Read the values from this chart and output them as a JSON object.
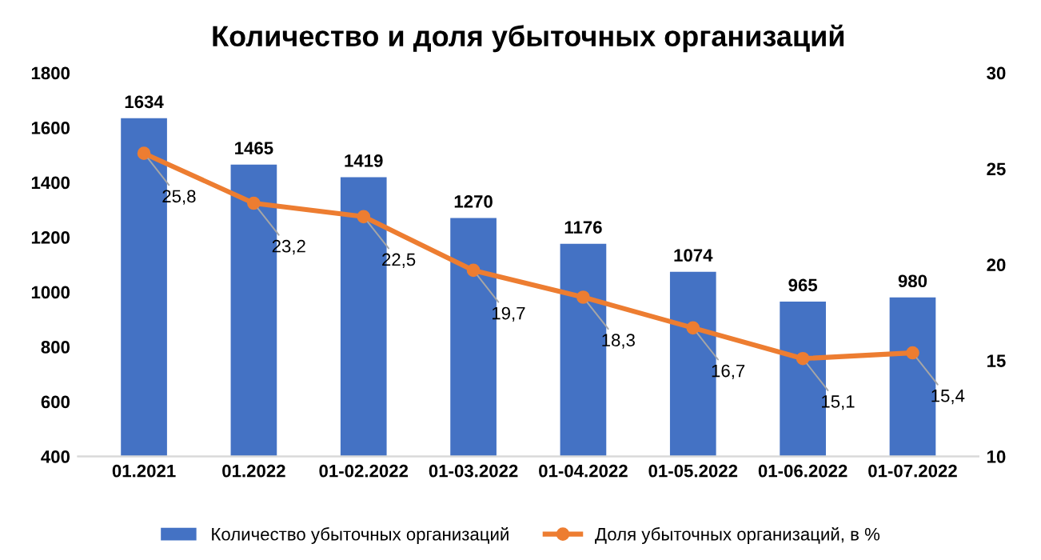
{
  "chart_data": {
    "type": "bar",
    "title": "Количество и доля убыточных организаций",
    "categories": [
      "01.2021",
      "01.2022",
      "01-02.2022",
      "01-03.2022",
      "01-04.2022",
      "01-05.2022",
      "01-06.2022",
      "01-07.2022"
    ],
    "series": [
      {
        "name": "Количество убыточных организаций",
        "color": "#4472c4",
        "values": [
          1634,
          1465,
          1419,
          1270,
          1176,
          1074,
          965,
          980
        ]
      },
      {
        "name": "Доля убыточных организаций, в %",
        "type": "line",
        "axis": "y2",
        "color": "#ed7d31",
        "values": [
          25.8,
          23.2,
          22.5,
          19.7,
          18.3,
          16.7,
          15.1,
          15.4
        ],
        "value_labels": [
          "25,8",
          "23,2",
          "22,5",
          "19,7",
          "18,3",
          "16,7",
          "15,1",
          "15,4"
        ]
      }
    ],
    "ylim": [
      400,
      1800
    ],
    "yticks": [
      400,
      600,
      800,
      1000,
      1200,
      1400,
      1600,
      1800
    ],
    "y2lim": [
      10,
      30
    ],
    "y2ticks": [
      10,
      15,
      20,
      25,
      30
    ],
    "data_labels": true,
    "legend": "bottom",
    "grid": false,
    "marker": "circle",
    "line_style": "solid"
  }
}
